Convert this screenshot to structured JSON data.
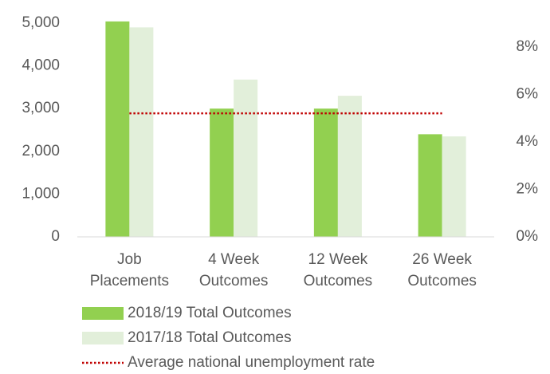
{
  "chart_data": {
    "type": "bar",
    "categories": [
      "Job Placements",
      "4 Week Outcomes",
      "12 Week Outcomes",
      "26 Week Outcomes"
    ],
    "series": [
      {
        "name": "2018/19 Total Outcomes",
        "color": "#92d050",
        "values": [
          5040,
          3000,
          3000,
          2400
        ]
      },
      {
        "name": "2017/18 Total Outcomes",
        "color": "#e2efda",
        "values": [
          4900,
          3680,
          3300,
          2350
        ]
      },
      {
        "name": "Average national unemployment rate",
        "type": "line",
        "axis": "y2",
        "color": "#c00000",
        "values": [
          5.2,
          5.2,
          5.2,
          5.2
        ]
      }
    ],
    "ylim": [
      0,
      5000
    ],
    "yticks": [
      0,
      {
        "value": 1000,
        "label": "1,000"
      },
      {
        "value": 2000,
        "label": "2,000"
      },
      {
        "value": 3000,
        "label": "3,000"
      },
      {
        "value": 4000,
        "label": "4,000"
      },
      {
        "value": 5000,
        "label": "5,000"
      }
    ],
    "y2lim": [
      0,
      9
    ],
    "y2ticks": [
      {
        "value": 0,
        "label": "0%"
      },
      {
        "value": 2,
        "label": "2%"
      },
      {
        "value": 4,
        "label": "4%"
      },
      {
        "value": 6,
        "label": "6%"
      },
      {
        "value": 8,
        "label": "8%"
      }
    ],
    "legend": "bottom"
  }
}
